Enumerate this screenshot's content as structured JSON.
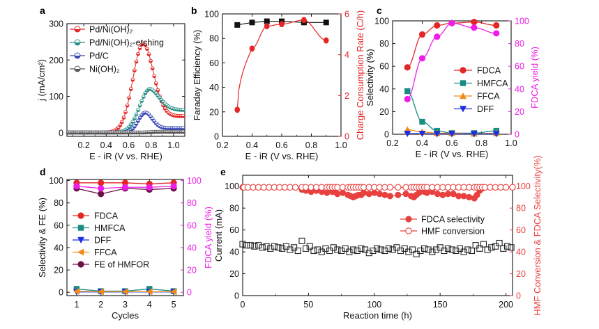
{
  "chart_data": [
    {
      "panel": "a",
      "type": "line",
      "xlabel": "E - iR (V vs. RHE)",
      "ylabel": "j (mA/cm²)",
      "xlim": [
        0.05,
        1.1
      ],
      "ylim": [
        -10,
        300
      ],
      "xticks": [
        "0.2",
        "0.4",
        "0.6",
        "0.8",
        "1.0"
      ],
      "yticks": [
        "0",
        "100",
        "200",
        "300"
      ],
      "series": [
        {
          "name": "Pd/Ni(OH)₂",
          "color": "#e32626",
          "peak_x": 0.73,
          "peak_y": 245,
          "width": 0.13,
          "tail": 45
        },
        {
          "name": "Pd/Ni(OH)₂-etching",
          "color": "#2a8f86",
          "peak_x": 0.79,
          "peak_y": 120,
          "width": 0.13,
          "tail": 62
        },
        {
          "name": "Pd/C",
          "color": "#3848b5",
          "peak_x": 0.75,
          "peak_y": 55,
          "width": 0.09,
          "tail": 12
        },
        {
          "name": "Ni(OH)₂",
          "color": "#555555",
          "peak_x": 0.7,
          "peak_y": 0,
          "width": 0.1,
          "tail": 2
        }
      ]
    },
    {
      "panel": "b",
      "type": "line",
      "xlabel": "E - iR (V vs. RHE)",
      "ylabel_left": "Faraday Efficiency (%)",
      "ylabel_right": "Charge Consumption Rate (C/h)",
      "xlim": [
        0.2,
        1.0
      ],
      "ylim_left": [
        0,
        100
      ],
      "ylim_right": [
        0,
        6
      ],
      "xticks": [
        "0.2",
        "0.4",
        "0.6",
        "0.8",
        "1.0"
      ],
      "yticks_left": [
        "0",
        "20",
        "40",
        "60",
        "80",
        "100"
      ],
      "yticks_right": [
        "0",
        "2",
        "4",
        "6"
      ],
      "series": [
        {
          "name": "Faraday Efficiency",
          "axis": "left",
          "color": "#111111",
          "x": [
            0.3,
            0.4,
            0.5,
            0.6,
            0.75,
            0.9
          ],
          "y": [
            91,
            93,
            94,
            94,
            93,
            93
          ]
        },
        {
          "name": "Charge Consumption Rate",
          "axis": "right",
          "color": "#e32626",
          "x": [
            0.3,
            0.4,
            0.5,
            0.6,
            0.75,
            0.9
          ],
          "y": [
            1.3,
            4.3,
            5.4,
            5.5,
            5.7,
            4.7
          ]
        }
      ]
    },
    {
      "panel": "c",
      "type": "line",
      "xlabel": "E - iR (V vs. RHE)",
      "ylabel_left": "Selectivity (%)",
      "ylabel_right": "FDCA yield (%)",
      "xlim": [
        0.2,
        1.0
      ],
      "ylim_left": [
        0,
        100
      ],
      "ylim_right": [
        0,
        100
      ],
      "xticks": [
        "0.2",
        "0.4",
        "0.6",
        "0.8",
        "1.0"
      ],
      "yticks_left": [
        "0",
        "20",
        "40",
        "60",
        "80",
        "100"
      ],
      "yticks_right": [
        "0",
        "20",
        "40",
        "60",
        "80",
        "100"
      ],
      "x": [
        0.3,
        0.4,
        0.5,
        0.6,
        0.75,
        0.9
      ],
      "series": [
        {
          "name": "FDCA",
          "color": "#e32626",
          "marker": "circle",
          "y": [
            59,
            88,
            96,
            98,
            99,
            96
          ]
        },
        {
          "name": "HMFCA",
          "color": "#198c84",
          "marker": "square",
          "y": [
            38,
            11,
            3,
            1,
            1,
            3
          ]
        },
        {
          "name": "FFCA",
          "color": "#f08a18",
          "marker": "triangle-up",
          "y": [
            4,
            2,
            1,
            1,
            0.5,
            1
          ]
        },
        {
          "name": "DFF",
          "color": "#1d2ee0",
          "marker": "triangle-down",
          "y": [
            0.5,
            0.5,
            0.3,
            0.3,
            0.3,
            0.3
          ]
        },
        {
          "name": "FDCA yield",
          "color": "#ee1ee8",
          "marker": "circle",
          "axis": "right",
          "legend": false,
          "y": [
            31,
            67,
            86,
            98,
            94,
            89
          ]
        }
      ]
    },
    {
      "panel": "d",
      "type": "line",
      "xlabel": "Cycles",
      "ylabel_left": "Selectivity & FE (%)",
      "ylabel_right": "FDCA yield (%)",
      "xlim": [
        0.6,
        5.4
      ],
      "ylim_left": [
        -3,
        101
      ],
      "ylim_right": [
        -3,
        101
      ],
      "xticks": [
        "1",
        "2",
        "3",
        "4",
        "5"
      ],
      "yticks_left": [
        "0",
        "20",
        "40",
        "60",
        "80",
        "100"
      ],
      "yticks_right": [
        "0",
        "20",
        "40",
        "60",
        "80",
        "100"
      ],
      "x": [
        1,
        2,
        3,
        4,
        5
      ],
      "series": [
        {
          "name": "FDCA",
          "color": "#e32626",
          "marker": "circle",
          "y": [
            98,
            98,
            98,
            97,
            98
          ]
        },
        {
          "name": "HMFCA",
          "color": "#198c84",
          "marker": "square",
          "y": [
            3,
            1,
            1,
            3,
            1
          ]
        },
        {
          "name": "DFF",
          "color": "#1d2ee0",
          "marker": "triangle-down",
          "y": [
            0.3,
            0.3,
            0.3,
            0.3,
            0.3
          ]
        },
        {
          "name": "FFCA",
          "color": "#f08a18",
          "marker": "triangle-left",
          "y": [
            0.8,
            0.5,
            0.5,
            0.5,
            0.5
          ]
        },
        {
          "name": "FE of HMFOR",
          "color": "#6e0f4a",
          "marker": "circle",
          "y": [
            93,
            88,
            93,
            92,
            93
          ]
        },
        {
          "name": "FDCA yield",
          "color": "#ee1ee8",
          "marker": "circle",
          "axis": "right",
          "legend": false,
          "y": [
            95,
            93,
            94,
            94,
            95
          ]
        }
      ]
    },
    {
      "panel": "e",
      "type": "scatter",
      "xlabel": "Reaction time (h)",
      "ylabel_left": "Current (mA)",
      "ylabel_right": "HMF Conversion & FDCA Selectivity(%)",
      "xlim": [
        0,
        205
      ],
      "ylim_left": [
        0,
        110
      ],
      "ylim_right": [
        0,
        110
      ],
      "xticks": [
        "0",
        "50",
        "100",
        "150",
        "200"
      ],
      "yticks_left": [
        "0",
        "20",
        "40",
        "60",
        "80",
        "100"
      ],
      "yticks_right": [
        "0",
        "20",
        "40",
        "60",
        "80",
        "100"
      ],
      "series": [
        {
          "name": "FDCA selectivity",
          "color": "#e8403f",
          "marker": "filled-circle",
          "axis": "right",
          "x": [
            0,
            4,
            8,
            12,
            16,
            20,
            24,
            28,
            32,
            36,
            40,
            45,
            48,
            52,
            56,
            60,
            64,
            66,
            68,
            70,
            72,
            76,
            80,
            82,
            84,
            86,
            88,
            90,
            92,
            96,
            100,
            104,
            108,
            112,
            118,
            124,
            128,
            130,
            132,
            134,
            136,
            138,
            140,
            144,
            148,
            152,
            156,
            160,
            164,
            168,
            172,
            176,
            178,
            180,
            182,
            184,
            188,
            192,
            196,
            200,
            205
          ],
          "y": [
            99,
            99,
            99,
            99,
            99,
            99,
            99,
            99,
            99,
            99,
            99,
            97,
            96,
            95,
            96,
            95,
            94,
            96,
            95,
            95,
            93,
            94,
            92,
            91,
            90,
            91,
            92,
            92,
            94,
            93,
            94,
            93,
            92,
            91,
            92,
            93,
            91,
            90,
            92,
            94,
            96,
            95,
            94,
            95,
            93,
            92,
            93,
            93,
            91,
            91,
            90,
            89,
            92,
            96,
            98,
            99,
            99,
            99,
            99,
            99,
            99
          ]
        },
        {
          "name": "HMF conversion",
          "color": "#e8403f",
          "marker": "open-circle",
          "axis": "right",
          "x": [
            1,
            4,
            8,
            12,
            16,
            20,
            24,
            28,
            32,
            36,
            40,
            45,
            48,
            52,
            56,
            60,
            64,
            66,
            68,
            70,
            72,
            76,
            80,
            82,
            84,
            86,
            88,
            90,
            92,
            96,
            100,
            104,
            108,
            112,
            118,
            124,
            128,
            130,
            132,
            134,
            136,
            138,
            140,
            144,
            148,
            152,
            156,
            160,
            164,
            168,
            172,
            176,
            178,
            180,
            182,
            184,
            188,
            192,
            196,
            200,
            205
          ],
          "y": [
            99,
            99,
            99,
            99,
            99,
            99,
            99,
            99,
            99,
            99,
            99,
            99,
            99,
            99,
            99,
            99,
            99,
            99,
            99,
            99,
            99,
            99,
            99,
            99,
            99,
            99,
            99,
            99,
            99,
            99,
            99,
            99,
            99,
            99,
            99,
            99,
            99,
            99,
            99,
            99,
            99,
            99,
            99,
            99,
            99,
            99,
            99,
            99,
            99,
            99,
            99,
            99,
            99,
            99,
            99,
            99,
            99,
            99,
            99,
            99,
            99
          ]
        },
        {
          "name": "Current",
          "color": "#222222",
          "marker": "open-square",
          "axis": "left",
          "legend": false,
          "x": [
            0,
            3,
            6,
            9,
            12,
            15,
            18,
            21,
            24,
            27,
            30,
            33,
            36,
            39,
            42,
            45,
            48,
            51,
            54,
            57,
            60,
            63,
            66,
            69,
            72,
            75,
            78,
            81,
            84,
            87,
            90,
            93,
            96,
            99,
            102,
            105,
            108,
            111,
            114,
            117,
            120,
            123,
            126,
            129,
            132,
            135,
            138,
            141,
            144,
            147,
            150,
            153,
            156,
            159,
            162,
            165,
            168,
            171,
            174,
            177,
            180,
            183,
            186,
            189,
            192,
            195,
            198,
            201,
            204
          ],
          "y": [
            47,
            46,
            46,
            45,
            46,
            44,
            45,
            43,
            45,
            44,
            43,
            45,
            42,
            44,
            41,
            50,
            43,
            45,
            41,
            42,
            40,
            43,
            41,
            44,
            42,
            41,
            43,
            40,
            42,
            41,
            43,
            42,
            39,
            41,
            43,
            42,
            41,
            43,
            42,
            44,
            41,
            43,
            40,
            42,
            38,
            41,
            43,
            42,
            40,
            42,
            44,
            41,
            43,
            42,
            41,
            43,
            40,
            42,
            41,
            46,
            43,
            47,
            42,
            44,
            45,
            48,
            43,
            45,
            44
          ]
        }
      ]
    }
  ]
}
